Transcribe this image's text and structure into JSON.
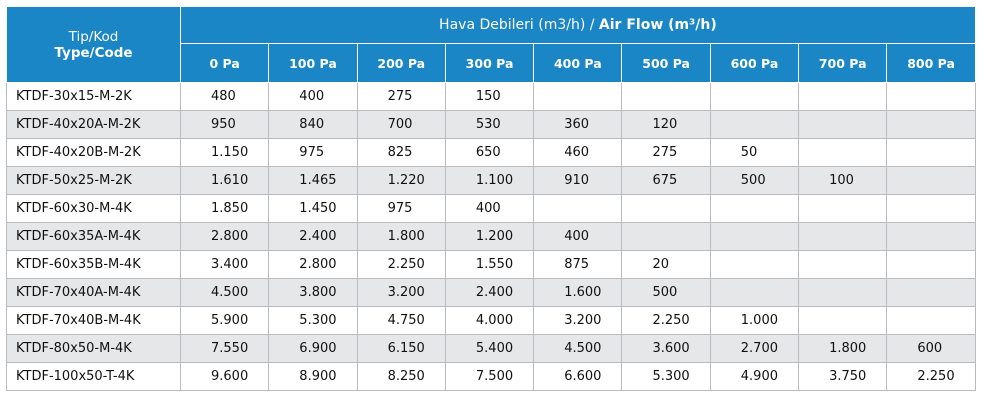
{
  "header": {
    "code_label_tr": "Tip/Kod",
    "code_label_en": "Type/Code",
    "flow_label_tr": "Hava Debileri (m3/h) / ",
    "flow_label_en": "Air Flow (m³/h)",
    "pressures": [
      "0 Pa",
      "100 Pa",
      "200 Pa",
      "300 Pa",
      "400 Pa",
      "500 Pa",
      "600 Pa",
      "700 Pa",
      "800 Pa"
    ]
  },
  "rows": [
    {
      "code": "KTDF-30x15-M-2K",
      "values": [
        "480",
        "400",
        "275",
        "150",
        "",
        "",
        "",
        "",
        ""
      ]
    },
    {
      "code": "KTDF-40x20A-M-2K",
      "values": [
        "950",
        "840",
        "700",
        "530",
        "360",
        "120",
        "",
        "",
        ""
      ]
    },
    {
      "code": "KTDF-40x20B-M-2K",
      "values": [
        "1.150",
        "975",
        "825",
        "650",
        "460",
        "275",
        "50",
        "",
        ""
      ]
    },
    {
      "code": "KTDF-50x25-M-2K",
      "values": [
        "1.610",
        "1.465",
        "1.220",
        "1.100",
        "910",
        "675",
        "500",
        "100",
        ""
      ]
    },
    {
      "code": "KTDF-60x30-M-4K",
      "values": [
        "1.850",
        "1.450",
        "975",
        "400",
        "",
        "",
        "",
        "",
        ""
      ]
    },
    {
      "code": "KTDF-60x35A-M-4K",
      "values": [
        "2.800",
        "2.400",
        "1.800",
        "1.200",
        "400",
        "",
        "",
        "",
        ""
      ]
    },
    {
      "code": "KTDF-60x35B-M-4K",
      "values": [
        "3.400",
        "2.800",
        "2.250",
        "1.550",
        "875",
        "20",
        "",
        "",
        ""
      ]
    },
    {
      "code": "KTDF-70x40A-M-4K",
      "values": [
        "4.500",
        "3.800",
        "3.200",
        "2.400",
        "1.600",
        "500",
        "",
        "",
        ""
      ]
    },
    {
      "code": "KTDF-70x40B-M-4K",
      "values": [
        "5.900",
        "5.300",
        "4.750",
        "4.000",
        "3.200",
        "2.250",
        "1.000",
        "",
        ""
      ]
    },
    {
      "code": "KTDF-80x50-M-4K",
      "values": [
        "7.550",
        "6.900",
        "6.150",
        "5.400",
        "4.500",
        "3.600",
        "2.700",
        "1.800",
        "600"
      ]
    },
    {
      "code": "KTDF-100x50-T-4K",
      "values": [
        "9.600",
        "8.900",
        "8.250",
        "7.500",
        "6.600",
        "5.300",
        "4.900",
        "3.750",
        "2.250"
      ]
    }
  ]
}
